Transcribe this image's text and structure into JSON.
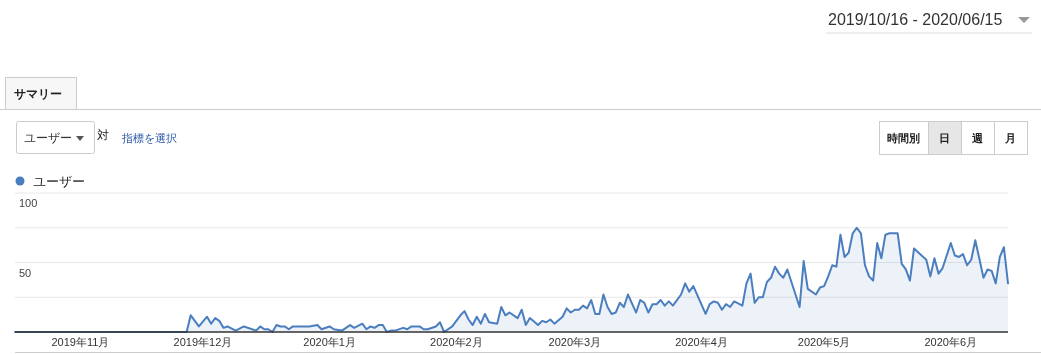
{
  "chart_data": {
    "type": "area",
    "subtitle": "2019/10/16 - 2020/06/15",
    "annotations": [
      "サマリー",
      "ユーザー",
      "対",
      "指標を選択",
      "時間別",
      "日",
      "週",
      "月"
    ],
    "legend": "top left",
    "grid": "y",
    "marker": "none",
    "line_style": "solid",
    "xlim": [
      "2019-10-16",
      "2020-06-15"
    ],
    "xticks": [
      {
        "value": "2019-11-01",
        "label": "2019年11月"
      },
      {
        "value": "2019-12-01",
        "label": "2019年12月"
      },
      {
        "value": "2020-01-01",
        "label": "2020年1月"
      },
      {
        "value": "2020-02-01",
        "label": "2020年2月"
      },
      {
        "value": "2020-03-01",
        "label": "2020年3月"
      },
      {
        "value": "2020-04-01",
        "label": "2020年4月"
      },
      {
        "value": "2020-05-01",
        "label": "2020年5月"
      },
      {
        "value": "2020-06-01",
        "label": "2020年6月"
      }
    ],
    "ylim": [
      0,
      100
    ],
    "yticks": [
      {
        "value": 25,
        "label": null
      },
      50,
      {
        "value": 75,
        "label": null
      },
      100
    ],
    "x": [
      "2019-10-16",
      "2019-11-27",
      "2019-11-28",
      "2019-11-30",
      "2019-12-02",
      "2019-12-03",
      "2019-12-04",
      "2019-12-05",
      "2019-12-06",
      "2019-12-07",
      "2019-12-09",
      "2019-12-11",
      "2019-12-14",
      "2019-12-15",
      "2019-12-16",
      "2019-12-17",
      "2019-12-18",
      "2019-12-19",
      "2019-12-20",
      "2019-12-21",
      "2019-12-22",
      "2019-12-23",
      "2019-12-27",
      "2019-12-29",
      "2019-12-30",
      "2020-01-01",
      "2020-01-02",
      "2020-01-04",
      "2020-01-06",
      "2020-01-07",
      "2020-01-09",
      "2020-01-10",
      "2020-01-11",
      "2020-01-12",
      "2020-01-13",
      "2020-01-14",
      "2020-01-15",
      "2020-01-16",
      "2020-01-17",
      "2020-01-19",
      "2020-01-20",
      "2020-01-21",
      "2020-01-23",
      "2020-01-24",
      "2020-01-25",
      "2020-01-27",
      "2020-01-28",
      "2020-01-29",
      "2020-01-31",
      "2020-02-02",
      "2020-02-03",
      "2020-02-04",
      "2020-02-05",
      "2020-02-06",
      "2020-02-07",
      "2020-02-08",
      "2020-02-09",
      "2020-02-11",
      "2020-02-12",
      "2020-02-13",
      "2020-02-14",
      "2020-02-16",
      "2020-02-17",
      "2020-02-18",
      "2020-02-19",
      "2020-02-21",
      "2020-02-22",
      "2020-02-23",
      "2020-02-24",
      "2020-02-25",
      "2020-02-27",
      "2020-02-28",
      "2020-02-29",
      "2020-03-01",
      "2020-03-02",
      "2020-03-03",
      "2020-03-04",
      "2020-03-05",
      "2020-03-06",
      "2020-03-07",
      "2020-03-08",
      "2020-03-09",
      "2020-03-10",
      "2020-03-11",
      "2020-03-12",
      "2020-03-13",
      "2020-03-14",
      "2020-03-16",
      "2020-03-17",
      "2020-03-18",
      "2020-03-19",
      "2020-03-20",
      "2020-03-21",
      "2020-03-22",
      "2020-03-23",
      "2020-03-24",
      "2020-03-25",
      "2020-03-27",
      "2020-03-28",
      "2020-03-29",
      "2020-03-30",
      "2020-04-02",
      "2020-04-03",
      "2020-04-04",
      "2020-04-05",
      "2020-04-06",
      "2020-04-07",
      "2020-04-08",
      "2020-04-09",
      "2020-04-11",
      "2020-04-12",
      "2020-04-13",
      "2020-04-14",
      "2020-04-15",
      "2020-04-16",
      "2020-04-17",
      "2020-04-18",
      "2020-04-19",
      "2020-04-20",
      "2020-04-21",
      "2020-04-22",
      "2020-04-25",
      "2020-04-26",
      "2020-04-27",
      "2020-04-29",
      "2020-04-30",
      "2020-05-01",
      "2020-05-02",
      "2020-05-03",
      "2020-05-04",
      "2020-05-05",
      "2020-05-06",
      "2020-05-07",
      "2020-05-08",
      "2020-05-09",
      "2020-05-10",
      "2020-05-11",
      "2020-05-12",
      "2020-05-13",
      "2020-05-14",
      "2020-05-15",
      "2020-05-16",
      "2020-05-17",
      "2020-05-19",
      "2020-05-20",
      "2020-05-21",
      "2020-05-22",
      "2020-05-23",
      "2020-05-26",
      "2020-05-27",
      "2020-05-28",
      "2020-05-29",
      "2020-05-30",
      "2020-06-01",
      "2020-06-02",
      "2020-06-03",
      "2020-06-04",
      "2020-06-05",
      "2020-06-06",
      "2020-06-07",
      "2020-06-09",
      "2020-06-10",
      "2020-06-11",
      "2020-06-12",
      "2020-06-13",
      "2020-06-14",
      "2020-06-15"
    ],
    "series": [
      {
        "name": "ユーザー",
        "color": "#4a7ebf",
        "values": [
          0,
          0,
          12,
          4,
          11,
          6,
          10,
          8,
          3,
          4,
          1,
          4,
          1,
          4,
          2,
          2,
          0,
          5,
          4,
          4,
          2,
          4,
          4,
          5,
          2,
          4,
          2,
          1,
          5,
          3,
          6,
          2,
          4,
          3,
          5,
          5,
          0,
          1,
          1,
          3,
          2,
          4,
          4,
          2,
          2,
          4,
          7,
          0,
          4,
          12,
          15,
          9,
          5,
          11,
          6,
          13,
          7,
          6,
          18,
          12,
          14,
          10,
          16,
          5,
          10,
          5,
          8,
          7,
          9,
          6,
          11,
          17,
          14,
          16,
          16,
          19,
          17,
          23,
          13,
          13,
          27,
          18,
          13,
          14,
          21,
          18,
          27,
          14,
          23,
          21,
          14,
          20,
          20,
          23,
          19,
          22,
          19,
          27,
          35,
          29,
          33,
          13,
          20,
          22,
          21,
          16,
          20,
          18,
          22,
          19,
          35,
          42,
          21,
          25,
          25,
          36,
          39,
          47,
          42,
          39,
          45,
          18,
          51,
          31,
          27,
          32,
          33,
          40,
          48,
          47,
          70,
          54,
          57,
          71,
          75,
          71,
          48,
          40,
          37,
          64,
          53,
          70,
          71,
          71,
          49,
          45,
          37,
          60,
          52,
          40,
          53,
          42,
          46,
          64,
          55,
          54,
          56,
          48,
          52,
          66,
          39,
          45,
          44,
          35,
          54,
          61,
          35
        ]
      }
    ]
  }
}
